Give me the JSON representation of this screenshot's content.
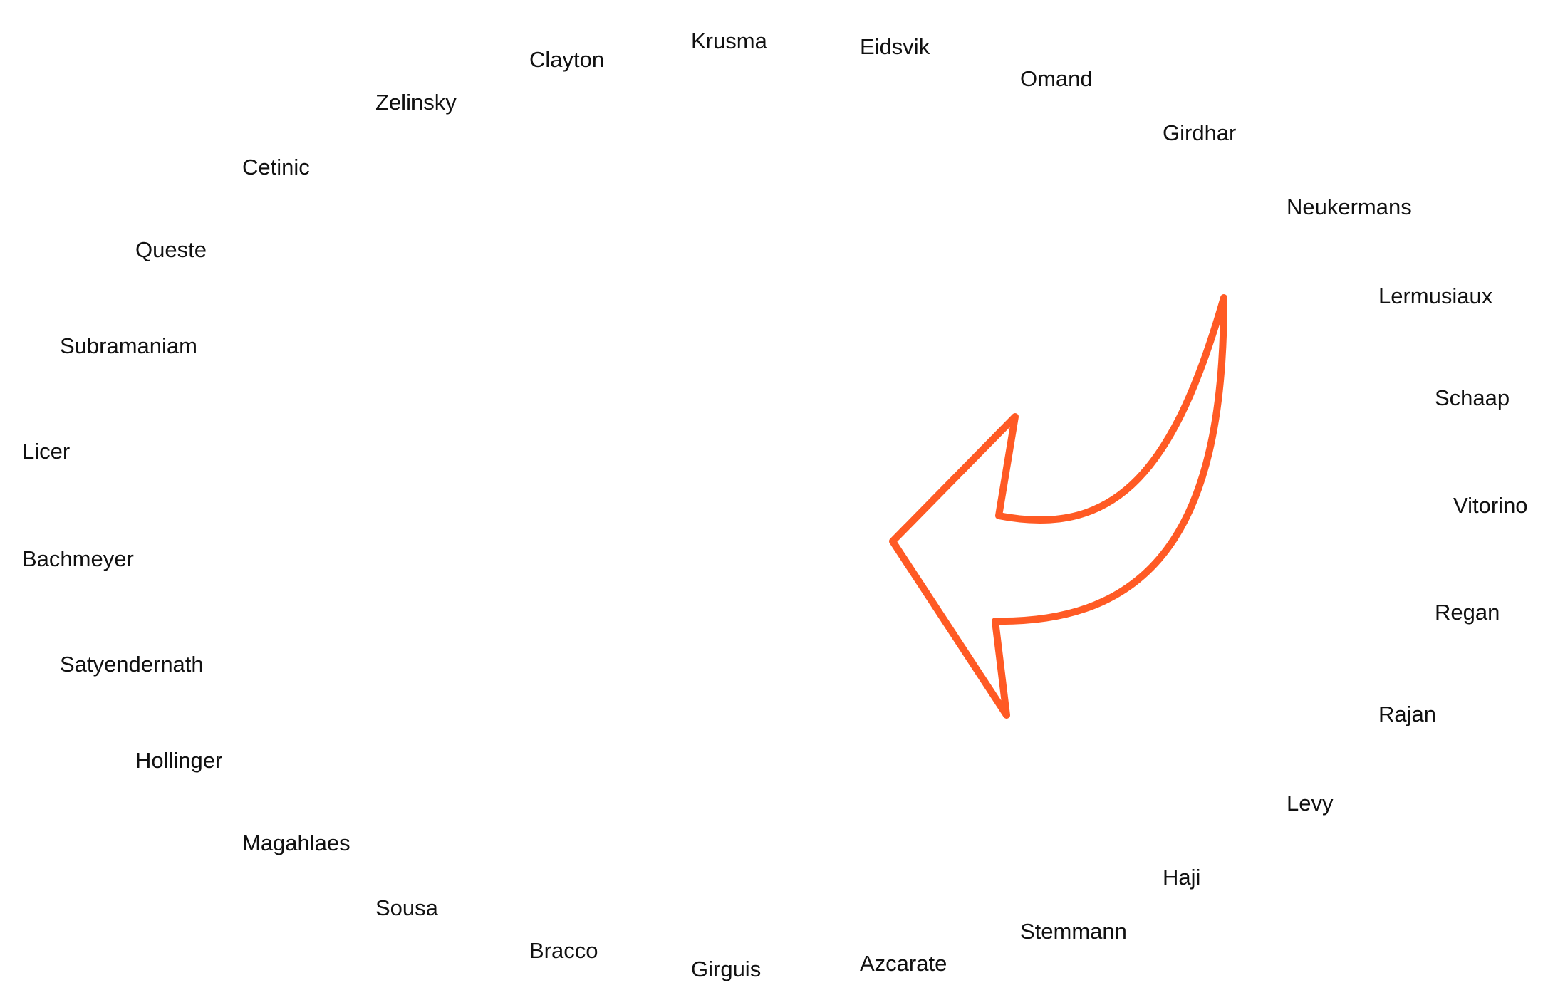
{
  "diagram": {
    "arrow": {
      "color": "#ff5a24",
      "direction": "curving-left",
      "icon": "curved-arrow-icon"
    },
    "names": [
      "Krusma",
      "Eidsvik",
      "Clayton",
      "Omand",
      "Zelinsky",
      "Girdhar",
      "Cetinic",
      "Neukermans",
      "Queste",
      "Lermusiaux",
      "Subramaniam",
      "Schaap",
      "Licer",
      "Vitorino",
      "Bachmeyer",
      "Regan",
      "Satyendernath",
      "Rajan",
      "Hollinger",
      "Levy",
      "Magahlaes",
      "Haji",
      "Sousa",
      "Stemmann",
      "Bracco",
      "Azcarate",
      "Girguis"
    ]
  }
}
